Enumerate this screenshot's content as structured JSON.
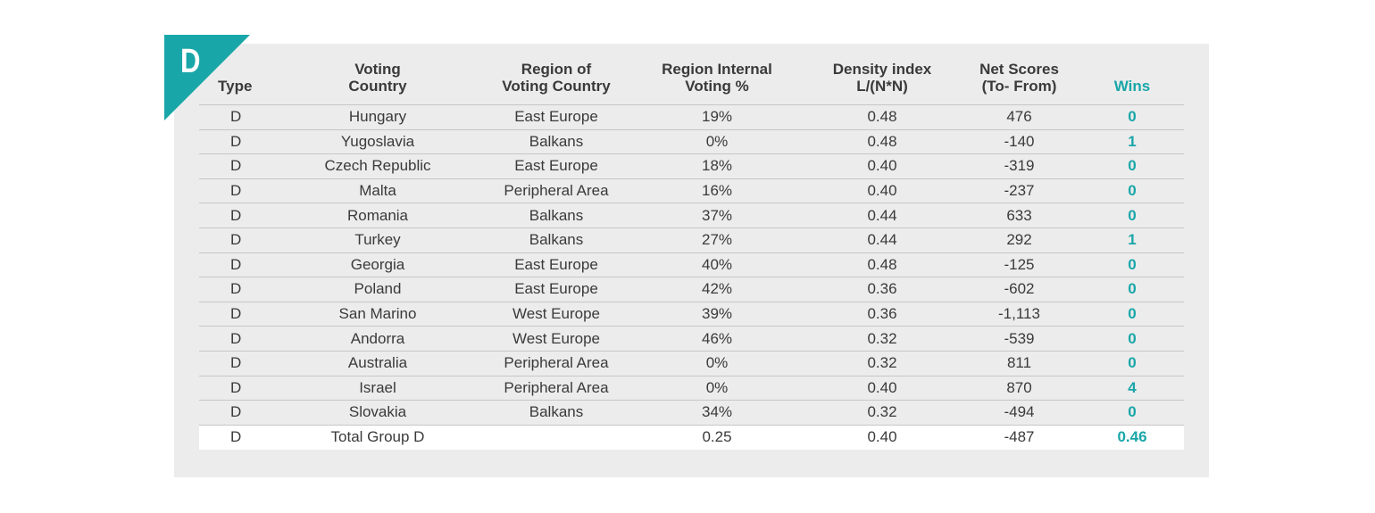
{
  "badge": {
    "letter": "D"
  },
  "headers": {
    "type": "Type",
    "voting_country_1": "Voting",
    "voting_country_2": "Country",
    "region_1": "Region of",
    "region_2": "Voting Country",
    "internal_1": "Region Internal",
    "internal_2": "Voting %",
    "density_1": "Density index",
    "density_2": "L/(N*N)",
    "net_1": "Net Scores",
    "net_2": "(To- From)",
    "wins": "Wins"
  },
  "rows": [
    {
      "type": "D",
      "country": "Hungary",
      "region": "East Europe",
      "internal": "19%",
      "density": "0.48",
      "net": "476",
      "wins": "0"
    },
    {
      "type": "D",
      "country": "Yugoslavia",
      "region": "Balkans",
      "internal": "0%",
      "density": "0.48",
      "net": "-140",
      "wins": "1"
    },
    {
      "type": "D",
      "country": "Czech Republic",
      "region": "East Europe",
      "internal": "18%",
      "density": "0.40",
      "net": "-319",
      "wins": "0"
    },
    {
      "type": "D",
      "country": "Malta",
      "region": "Peripheral Area",
      "internal": "16%",
      "density": "0.40",
      "net": "-237",
      "wins": "0"
    },
    {
      "type": "D",
      "country": "Romania",
      "region": "Balkans",
      "internal": "37%",
      "density": "0.44",
      "net": "633",
      "wins": "0"
    },
    {
      "type": "D",
      "country": "Turkey",
      "region": "Balkans",
      "internal": "27%",
      "density": "0.44",
      "net": "292",
      "wins": "1"
    },
    {
      "type": "D",
      "country": "Georgia",
      "region": "East Europe",
      "internal": "40%",
      "density": "0.48",
      "net": "-125",
      "wins": "0"
    },
    {
      "type": "D",
      "country": "Poland",
      "region": "East Europe",
      "internal": "42%",
      "density": "0.36",
      "net": "-602",
      "wins": "0"
    },
    {
      "type": "D",
      "country": "San Marino",
      "region": "West Europe",
      "internal": "39%",
      "density": "0.36",
      "net": "-1,113",
      "wins": "0"
    },
    {
      "type": "D",
      "country": "Andorra",
      "region": "West Europe",
      "internal": "46%",
      "density": "0.32",
      "net": "-539",
      "wins": "0"
    },
    {
      "type": "D",
      "country": "Australia",
      "region": "Peripheral Area",
      "internal": "0%",
      "density": "0.32",
      "net": "811",
      "wins": "0"
    },
    {
      "type": "D",
      "country": "Israel",
      "region": "Peripheral Area",
      "internal": "0%",
      "density": "0.40",
      "net": "870",
      "wins": "4"
    },
    {
      "type": "D",
      "country": "Slovakia",
      "region": "Balkans",
      "internal": "34%",
      "density": "0.32",
      "net": "-494",
      "wins": "0"
    }
  ],
  "total": {
    "type": "D",
    "country": "Total Group D",
    "region": "",
    "internal": "0.25",
    "density": "0.40",
    "net": "-487",
    "wins": "0.46"
  },
  "colors": {
    "accent": "#19a6a8",
    "panel": "#ececec",
    "text": "#3a3a3a"
  }
}
